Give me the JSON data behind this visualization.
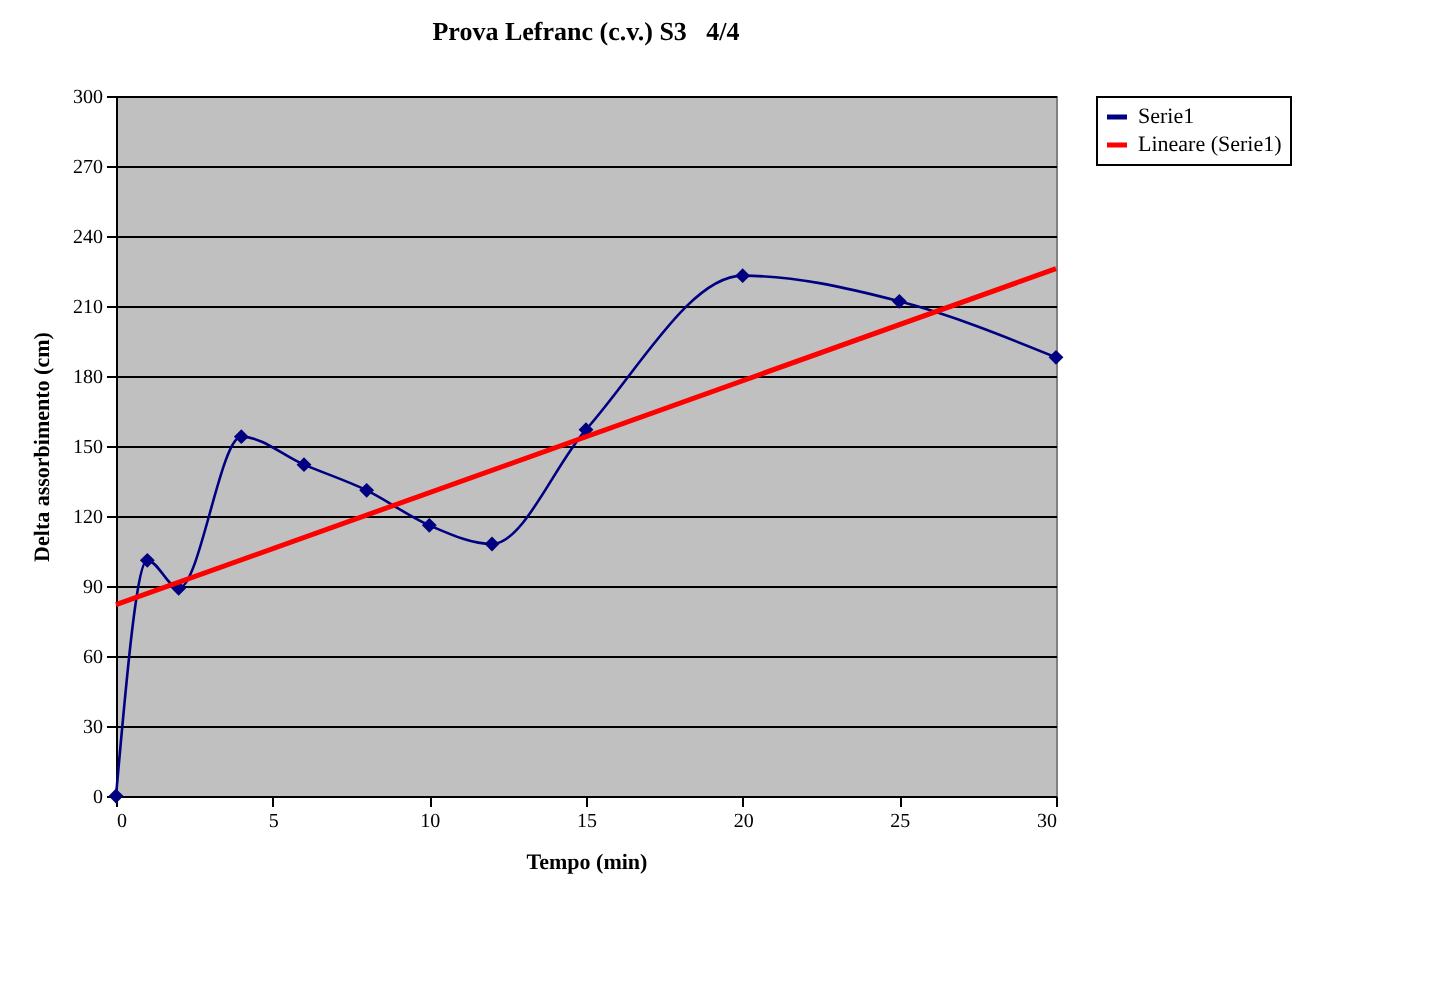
{
  "chart_data": {
    "type": "line",
    "title": "Prova Lefranc (c.v.) S3   4/4",
    "xlabel": "Tempo (min)",
    "ylabel": "Delta assorbimento (cm)",
    "x": [
      0,
      1,
      2,
      4,
      6,
      8,
      10,
      12,
      15,
      20,
      25,
      30
    ],
    "series": [
      {
        "name": "Serie1",
        "color": "#000080",
        "marker": "diamond",
        "values": [
          0,
          101,
          89,
          154,
          142,
          131,
          116,
          108,
          157,
          223,
          212,
          188
        ]
      },
      {
        "name": "Lineare (Serie1)",
        "color": "#ff0000",
        "marker": "none",
        "x": [
          0,
          30
        ],
        "values": [
          82,
          226
        ]
      }
    ],
    "xlim": [
      0,
      30
    ],
    "xticks": [
      0,
      5,
      10,
      15,
      20,
      25,
      30
    ],
    "ylim": [
      0,
      300
    ],
    "yticks": [
      0,
      30,
      60,
      90,
      120,
      150,
      180,
      210,
      240,
      270,
      300
    ],
    "grid": "y",
    "legend": "right",
    "line_style": "solid"
  }
}
